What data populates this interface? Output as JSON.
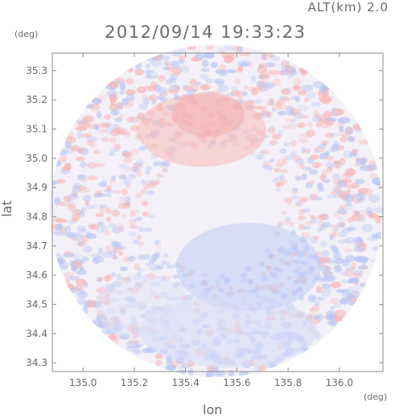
{
  "header": {
    "altitude": "ALT(km) 2.0",
    "timestamp": "2012/09/14 19:33:23"
  },
  "axes": {
    "x_unit": "(deg)",
    "y_unit": "(deg)",
    "xlabel": "lon",
    "ylabel": "lat",
    "x_ticks": [
      "135.0",
      "135.2",
      "135.4",
      "135.6",
      "135.8",
      "136.0"
    ],
    "y_ticks": [
      "35.3",
      "35.2",
      "35.1",
      "35.0",
      "34.9",
      "34.8",
      "34.7",
      "34.6",
      "34.5",
      "34.4",
      "34.3"
    ],
    "x_range": [
      134.88,
      136.17
    ],
    "y_range": [
      34.27,
      35.36
    ]
  },
  "radar": {
    "center_lon": 135.52,
    "center_lat": 34.82,
    "colors": {
      "positive": "#f7b9b9",
      "negative": "#b9c6f3",
      "neutral": "#f3f1f7"
    }
  }
}
